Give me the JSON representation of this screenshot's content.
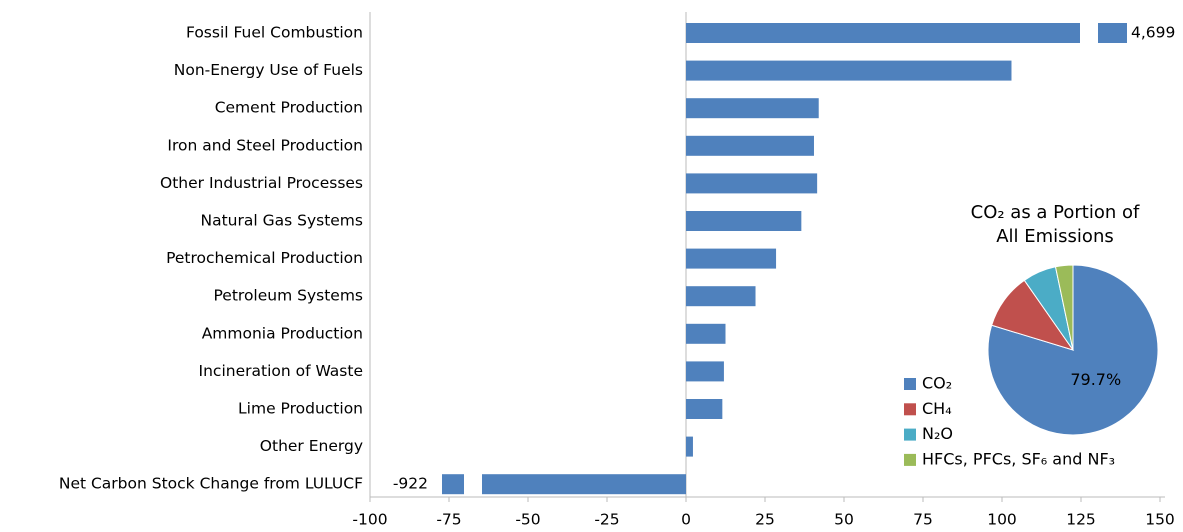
{
  "chart_data": [
    {
      "type": "bar",
      "orientation": "horizontal",
      "categories": [
        "Fossil Fuel Combustion",
        "Non-Energy Use of Fuels",
        "Cement Production",
        "Iron and Steel Production",
        "Other Industrial Processes",
        "Natural Gas Systems",
        "Petrochemical Production",
        "Petroleum Systems",
        "Ammonia Production",
        "Incineration of Waste",
        "Lime Production",
        "Other Energy",
        "Net Carbon Stock Change from LULUCF"
      ],
      "values": [
        4699,
        103,
        42,
        40.5,
        41.5,
        36.5,
        28.5,
        22,
        12.5,
        12,
        11.5,
        2.2,
        -922
      ],
      "value_labels": [
        "4,699",
        null,
        null,
        null,
        null,
        null,
        null,
        null,
        null,
        null,
        null,
        null,
        "-922"
      ],
      "color": "#4f81bd",
      "xlim": [
        -100,
        150
      ],
      "xticks": [
        -100,
        -75,
        -50,
        -25,
        0,
        25,
        50,
        75,
        100,
        125,
        150
      ]
    },
    {
      "type": "pie",
      "title": "CO₂ as a Portion of All Emissions",
      "categories": [
        "CO₂",
        "CH₄",
        "N₂O",
        "HFCs, PFCs, SF₆ and NF₃"
      ],
      "values": [
        79.7,
        10.6,
        6.4,
        3.3
      ],
      "value_labels": [
        "79.7%",
        null,
        null,
        null
      ],
      "colors": [
        "#4f81bd",
        "#c0504d",
        "#4bacc6",
        "#9bbb59"
      ]
    }
  ]
}
